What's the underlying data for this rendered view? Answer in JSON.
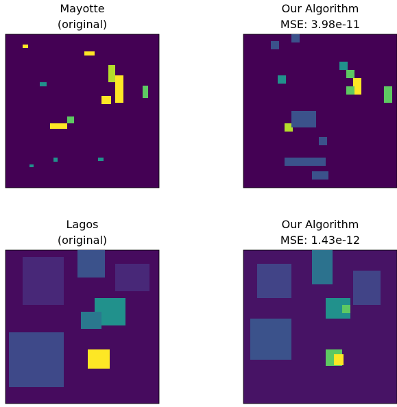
{
  "panels": [
    {
      "title": [
        "Mayotte",
        "(original)"
      ]
    },
    {
      "title": [
        "Our Algorithm",
        "MSE: 3.98e-11"
      ]
    },
    {
      "title": [
        "Lagos",
        "(original)"
      ]
    },
    {
      "title": [
        "Our Algorithm",
        "MSE: 1.43e-12"
      ]
    }
  ]
}
